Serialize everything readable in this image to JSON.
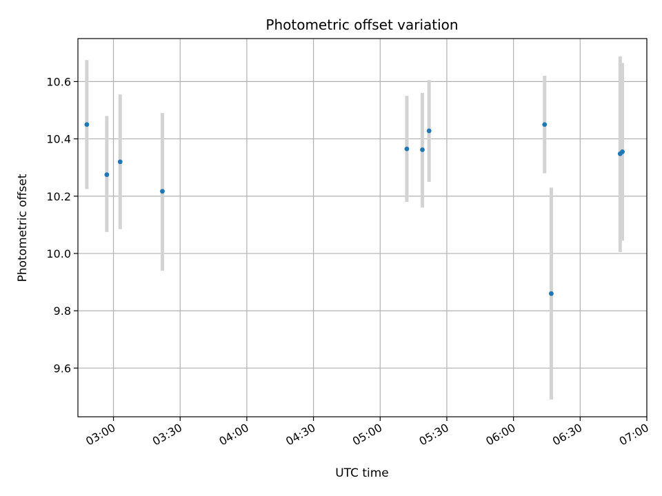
{
  "chart_data": {
    "type": "scatter",
    "title": "Photometric offset variation",
    "xlabel": "UTC time",
    "ylabel": "Photometric offset",
    "grid": true,
    "x_ticks": [
      "03:00",
      "03:30",
      "04:00",
      "04:30",
      "05:00",
      "05:30",
      "06:00",
      "06:30",
      "07:00"
    ],
    "y_ticks": [
      "9.6",
      "9.8",
      "10.0",
      "10.2",
      "10.4",
      "10.6"
    ],
    "xlim": [
      "02:44",
      "07:00"
    ],
    "ylim": [
      9.43,
      10.75
    ],
    "point_color": "#1f77b4",
    "errorbar_color": "#d3d3d3",
    "points": [
      {
        "x": "02:48",
        "y": 10.45,
        "ylow": 10.225,
        "yhigh": 10.675
      },
      {
        "x": "02:57",
        "y": 10.275,
        "ylow": 10.075,
        "yhigh": 10.48
      },
      {
        "x": "03:03",
        "y": 10.32,
        "ylow": 10.085,
        "yhigh": 10.555
      },
      {
        "x": "03:22",
        "y": 10.217,
        "ylow": 9.94,
        "yhigh": 10.49
      },
      {
        "x": "05:12",
        "y": 10.365,
        "ylow": 10.18,
        "yhigh": 10.55
      },
      {
        "x": "05:19",
        "y": 10.362,
        "ylow": 10.16,
        "yhigh": 10.56
      },
      {
        "x": "05:22",
        "y": 10.428,
        "ylow": 10.25,
        "yhigh": 10.605
      },
      {
        "x": "06:14",
        "y": 10.45,
        "ylow": 10.28,
        "yhigh": 10.62
      },
      {
        "x": "06:17",
        "y": 9.86,
        "ylow": 9.49,
        "yhigh": 10.23
      },
      {
        "x": "06:48",
        "y": 10.348,
        "ylow": 10.005,
        "yhigh": 10.688
      },
      {
        "x": "06:49",
        "y": 10.355,
        "ylow": 10.045,
        "yhigh": 10.665
      }
    ]
  }
}
